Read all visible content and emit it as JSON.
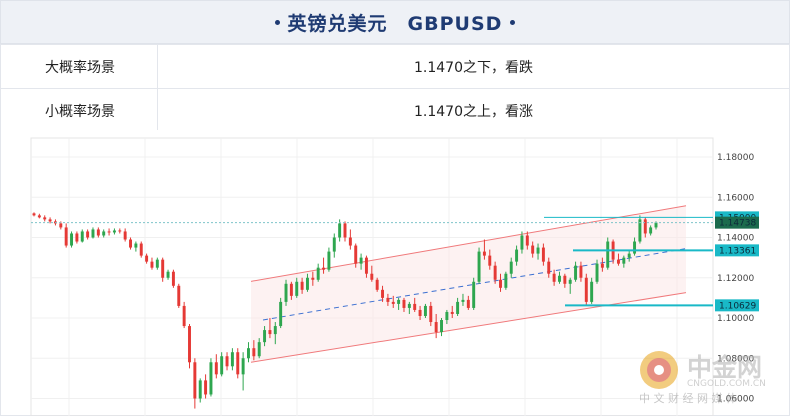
{
  "title": {
    "text": "英镑兑美元　GBPUSD"
  },
  "scenarios": [
    {
      "label": "大概率场景",
      "value": "1.1470之下，看跌"
    },
    {
      "label": "小概率场景",
      "value": "1.1470之上，看涨"
    }
  ],
  "watermark": {
    "brand": "中金网",
    "domain": "CNGOLD.COM.CN",
    "slogan": "中 文 财 经 网 媒 体"
  },
  "colors": {
    "up": "#2ea64f",
    "down": "#e53935",
    "level": "#19b9c7",
    "channel": "#f0797b",
    "dashed": "#3b6fd1",
    "title": "#1f3b73"
  },
  "chart_data": {
    "type": "candlestick",
    "symbol": "GBPUSD",
    "y_ticks": [
      "1.18000",
      "1.16000",
      "1.14000",
      "1.12000",
      "1.10000",
      "1.08000",
      "1.06000"
    ],
    "ylim": [
      1.058,
      1.186
    ],
    "grid": true,
    "current_price": {
      "label": "1.14738",
      "value": 1.14738
    },
    "levels": [
      {
        "label": "1.15000",
        "value": 1.15
      },
      {
        "label": "1.13361",
        "value": 1.13361
      },
      {
        "label": "1.10629",
        "value": 1.10629
      }
    ],
    "candles": [
      [
        1.152,
        1.1525,
        1.1505,
        1.151
      ],
      [
        1.151,
        1.1518,
        1.1495,
        1.15
      ],
      [
        1.15,
        1.151,
        1.148,
        1.149
      ],
      [
        1.149,
        1.15,
        1.147,
        1.148
      ],
      [
        1.148,
        1.149,
        1.146,
        1.147
      ],
      [
        1.147,
        1.148,
        1.144,
        1.145
      ],
      [
        1.145,
        1.147,
        1.135,
        1.136
      ],
      [
        1.136,
        1.143,
        1.135,
        1.142
      ],
      [
        1.142,
        1.143,
        1.137,
        1.138
      ],
      [
        1.138,
        1.144,
        1.1375,
        1.143
      ],
      [
        1.143,
        1.144,
        1.139,
        1.14
      ],
      [
        1.14,
        1.145,
        1.1395,
        1.144
      ],
      [
        1.144,
        1.145,
        1.14,
        1.141
      ],
      [
        1.141,
        1.144,
        1.14,
        1.143
      ],
      [
        1.143,
        1.1445,
        1.141,
        1.1425
      ],
      [
        1.1425,
        1.1445,
        1.1415,
        1.1435
      ],
      [
        1.1435,
        1.1445,
        1.142,
        1.143
      ],
      [
        1.143,
        1.1445,
        1.138,
        1.139
      ],
      [
        1.139,
        1.14,
        1.134,
        1.135
      ],
      [
        1.135,
        1.138,
        1.133,
        1.137
      ],
      [
        1.137,
        1.138,
        1.13,
        1.131
      ],
      [
        1.131,
        1.132,
        1.127,
        1.128
      ],
      [
        1.128,
        1.13,
        1.124,
        1.125
      ],
      [
        1.125,
        1.13,
        1.124,
        1.129
      ],
      [
        1.129,
        1.13,
        1.118,
        1.12
      ],
      [
        1.12,
        1.124,
        1.119,
        1.123
      ],
      [
        1.123,
        1.124,
        1.115,
        1.116
      ],
      [
        1.116,
        1.117,
        1.105,
        1.106
      ],
      [
        1.106,
        1.108,
        1.095,
        1.096
      ],
      [
        1.096,
        1.097,
        1.075,
        1.078
      ],
      [
        1.078,
        1.08,
        1.055,
        1.06
      ],
      [
        1.06,
        1.07,
        1.058,
        1.069
      ],
      [
        1.069,
        1.072,
        1.06,
        1.062
      ],
      [
        1.062,
        1.08,
        1.061,
        1.078
      ],
      [
        1.078,
        1.082,
        1.07,
        1.072
      ],
      [
        1.072,
        1.083,
        1.071,
        1.081
      ],
      [
        1.081,
        1.083,
        1.074,
        1.076
      ],
      [
        1.076,
        1.085,
        1.074,
        1.083
      ],
      [
        1.083,
        1.085,
        1.07,
        1.072
      ],
      [
        1.072,
        1.083,
        1.064,
        1.08
      ],
      [
        1.08,
        1.088,
        1.078,
        1.085
      ],
      [
        1.085,
        1.089,
        1.079,
        1.081
      ],
      [
        1.081,
        1.09,
        1.08,
        1.088
      ],
      [
        1.088,
        1.096,
        1.086,
        1.094
      ],
      [
        1.094,
        1.1,
        1.09,
        1.092
      ],
      [
        1.092,
        1.098,
        1.087,
        1.096
      ],
      [
        1.096,
        1.11,
        1.095,
        1.108
      ],
      [
        1.108,
        1.119,
        1.106,
        1.117
      ],
      [
        1.117,
        1.118,
        1.109,
        1.111
      ],
      [
        1.111,
        1.12,
        1.11,
        1.118
      ],
      [
        1.118,
        1.12,
        1.112,
        1.114
      ],
      [
        1.114,
        1.122,
        1.113,
        1.12
      ],
      [
        1.12,
        1.123,
        1.116,
        1.119
      ],
      [
        1.119,
        1.127,
        1.118,
        1.125
      ],
      [
        1.125,
        1.13,
        1.122,
        1.124
      ],
      [
        1.124,
        1.135,
        1.123,
        1.133
      ],
      [
        1.133,
        1.142,
        1.13,
        1.14
      ],
      [
        1.14,
        1.149,
        1.138,
        1.147
      ],
      [
        1.147,
        1.148,
        1.138,
        1.14
      ],
      [
        1.14,
        1.144,
        1.134,
        1.136
      ],
      [
        1.136,
        1.137,
        1.125,
        1.127
      ],
      [
        1.127,
        1.132,
        1.124,
        1.13
      ],
      [
        1.13,
        1.131,
        1.12,
        1.122
      ],
      [
        1.122,
        1.126,
        1.118,
        1.119
      ],
      [
        1.119,
        1.12,
        1.113,
        1.114
      ],
      [
        1.114,
        1.116,
        1.108,
        1.11
      ],
      [
        1.11,
        1.112,
        1.106,
        1.108
      ],
      [
        1.108,
        1.111,
        1.105,
        1.107
      ],
      [
        1.107,
        1.11,
        1.104,
        1.109
      ],
      [
        1.109,
        1.11,
        1.103,
        1.105
      ],
      [
        1.105,
        1.108,
        1.102,
        1.107
      ],
      [
        1.107,
        1.11,
        1.103,
        1.104
      ],
      [
        1.104,
        1.106,
        1.099,
        1.101
      ],
      [
        1.101,
        1.107,
        1.1,
        1.106
      ],
      [
        1.106,
        1.108,
        1.096,
        1.098
      ],
      [
        1.098,
        1.102,
        1.09,
        1.093
      ],
      [
        1.093,
        1.1,
        1.091,
        1.099
      ],
      [
        1.099,
        1.104,
        1.097,
        1.103
      ],
      [
        1.103,
        1.106,
        1.1,
        1.102
      ],
      [
        1.102,
        1.11,
        1.101,
        1.108
      ],
      [
        1.108,
        1.112,
        1.106,
        1.109
      ],
      [
        1.109,
        1.111,
        1.104,
        1.105
      ],
      [
        1.105,
        1.12,
        1.104,
        1.118
      ],
      [
        1.118,
        1.135,
        1.117,
        1.133
      ],
      [
        1.133,
        1.139,
        1.129,
        1.131
      ],
      [
        1.131,
        1.134,
        1.124,
        1.126
      ],
      [
        1.126,
        1.128,
        1.117,
        1.119
      ],
      [
        1.119,
        1.122,
        1.113,
        1.115
      ],
      [
        1.115,
        1.123,
        1.114,
        1.122
      ],
      [
        1.122,
        1.13,
        1.12,
        1.128
      ],
      [
        1.128,
        1.136,
        1.126,
        1.134
      ],
      [
        1.134,
        1.143,
        1.132,
        1.141
      ],
      [
        1.141,
        1.143,
        1.134,
        1.136
      ],
      [
        1.136,
        1.138,
        1.13,
        1.132
      ],
      [
        1.132,
        1.137,
        1.129,
        1.135
      ],
      [
        1.135,
        1.137,
        1.126,
        1.128
      ],
      [
        1.128,
        1.13,
        1.12,
        1.122
      ],
      [
        1.122,
        1.124,
        1.116,
        1.118
      ],
      [
        1.118,
        1.123,
        1.117,
        1.121
      ],
      [
        1.121,
        1.122,
        1.115,
        1.117
      ],
      [
        1.117,
        1.12,
        1.112,
        1.119
      ],
      [
        1.119,
        1.128,
        1.118,
        1.126
      ],
      [
        1.126,
        1.128,
        1.118,
        1.12
      ],
      [
        1.12,
        1.122,
        1.106,
        1.108
      ],
      [
        1.108,
        1.12,
        1.107,
        1.118
      ],
      [
        1.118,
        1.129,
        1.117,
        1.127
      ],
      [
        1.127,
        1.13,
        1.123,
        1.125
      ],
      [
        1.125,
        1.14,
        1.124,
        1.138
      ],
      [
        1.138,
        1.139,
        1.127,
        1.129
      ],
      [
        1.129,
        1.132,
        1.126,
        1.127
      ],
      [
        1.127,
        1.131,
        1.125,
        1.13
      ],
      [
        1.13,
        1.134,
        1.128,
        1.132
      ],
      [
        1.132,
        1.14,
        1.131,
        1.138
      ],
      [
        1.138,
        1.151,
        1.137,
        1.149
      ],
      [
        1.149,
        1.15,
        1.14,
        1.142
      ],
      [
        1.142,
        1.146,
        1.141,
        1.145
      ],
      [
        1.145,
        1.148,
        1.144,
        1.1474
      ]
    ]
  }
}
